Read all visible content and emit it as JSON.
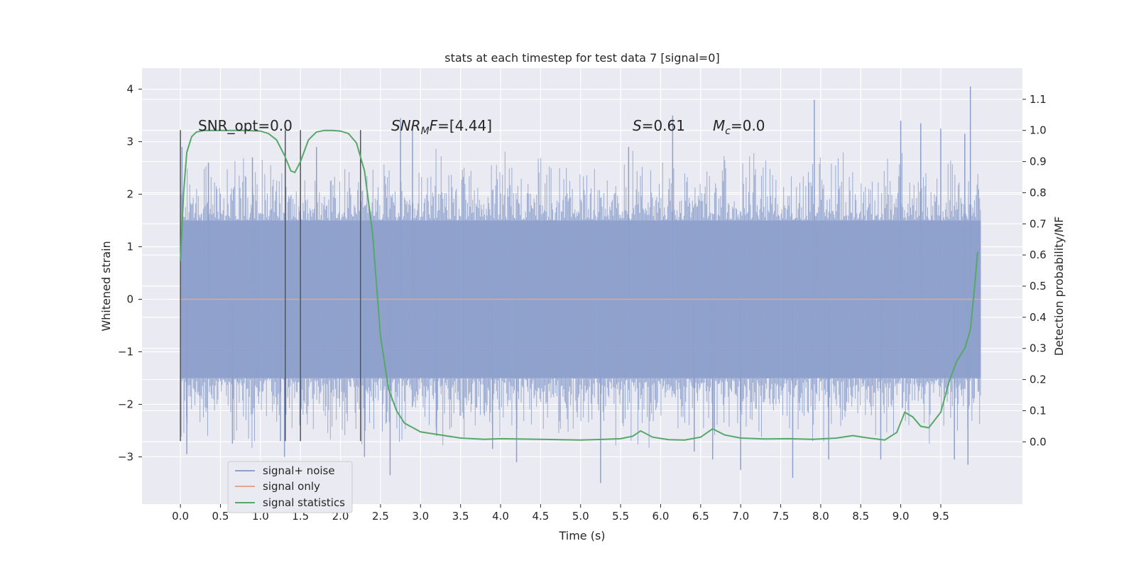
{
  "chart_data": {
    "type": "line",
    "title": "stats at each timestep for test data 7 [signal=0]",
    "xlabel": "Time (s)",
    "ylabel_left": "Whitened strain",
    "ylabel_right": "Detection probability/MF",
    "xlim": [
      -0.48,
      10.52
    ],
    "ylim_left": [
      -3.9,
      4.4
    ],
    "ylim_right": [
      -0.2,
      1.2
    ],
    "x_ticks": [
      "0.0",
      "0.5",
      "1.0",
      "1.5",
      "2.0",
      "2.5",
      "3.0",
      "3.5",
      "4.0",
      "4.5",
      "5.0",
      "5.5",
      "6.0",
      "6.5",
      "7.0",
      "7.5",
      "8.0",
      "8.5",
      "9.0",
      "9.5"
    ],
    "y_left_ticks": [
      "4",
      "3",
      "2",
      "1",
      "0",
      "−1",
      "−2",
      "−3"
    ],
    "y_right_ticks": [
      "1.1",
      "1.0",
      "0.9",
      "0.8",
      "0.7",
      "0.6",
      "0.5",
      "0.4",
      "0.3",
      "0.2",
      "0.1",
      "0.0"
    ],
    "grid": true,
    "legend_position": "lower-left",
    "annotations": {
      "snr_opt": "SNR_opt=0.0",
      "snr_mf": "=[4.44]",
      "s": "=0.61",
      "mc": "=0.0"
    },
    "vertical_markers_x": [
      0.0,
      1.31,
      1.5,
      2.25
    ],
    "series": [
      {
        "name": "signal+ noise",
        "color": "#8da0cb",
        "noise_band": [
          -1.5,
          1.5
        ],
        "peaks": [
          [
            0.02,
            2.9
          ],
          [
            0.08,
            -2.95
          ],
          [
            0.35,
            2.6
          ],
          [
            0.65,
            -2.75
          ],
          [
            0.9,
            2.7
          ],
          [
            1.25,
            -2.7
          ],
          [
            1.3,
            -3.0
          ],
          [
            1.7,
            2.9
          ],
          [
            2.3,
            -3.0
          ],
          [
            2.62,
            -3.35
          ],
          [
            2.75,
            3.45
          ],
          [
            2.9,
            3.3
          ],
          [
            3.2,
            -2.6
          ],
          [
            3.9,
            -2.85
          ],
          [
            4.2,
            -3.1
          ],
          [
            5.25,
            -3.5
          ],
          [
            5.6,
            2.9
          ],
          [
            6.15,
            3.5
          ],
          [
            6.42,
            -2.9
          ],
          [
            6.65,
            -3.05
          ],
          [
            7.0,
            -3.25
          ],
          [
            7.65,
            -3.4
          ],
          [
            7.92,
            3.8
          ],
          [
            8.1,
            -3.05
          ],
          [
            8.75,
            -3.05
          ],
          [
            9.0,
            3.4
          ],
          [
            9.25,
            3.35
          ],
          [
            9.5,
            3.25
          ],
          [
            9.67,
            -3.05
          ],
          [
            9.8,
            3.15
          ],
          [
            9.84,
            -3.15
          ],
          [
            9.87,
            4.05
          ]
        ],
        "x_range": [
          0.0,
          10.0
        ]
      },
      {
        "name": "signal only",
        "color": "#e5a58a",
        "x": [
          0.0,
          10.0
        ],
        "values": [
          0.0,
          0.0
        ]
      },
      {
        "name": "signal statistics",
        "color": "#55a868",
        "axis": "right",
        "x": [
          0.0,
          0.04,
          0.08,
          0.14,
          0.2,
          0.3,
          0.5,
          0.8,
          1.0,
          1.1,
          1.2,
          1.3,
          1.38,
          1.43,
          1.5,
          1.6,
          1.7,
          1.8,
          1.9,
          2.0,
          2.1,
          2.2,
          2.3,
          2.4,
          2.5,
          2.6,
          2.7,
          2.8,
          3.0,
          3.2,
          3.5,
          3.8,
          4.0,
          4.5,
          5.0,
          5.3,
          5.5,
          5.65,
          5.75,
          5.9,
          6.1,
          6.3,
          6.5,
          6.65,
          6.8,
          7.0,
          7.3,
          7.6,
          7.9,
          8.2,
          8.4,
          8.6,
          8.8,
          8.95,
          9.05,
          9.15,
          9.25,
          9.35,
          9.5,
          9.6,
          9.7,
          9.8,
          9.87,
          9.92,
          9.96
        ],
        "values": [
          0.58,
          0.8,
          0.93,
          0.98,
          0.995,
          1.0,
          1.0,
          1.0,
          0.998,
          0.99,
          0.97,
          0.92,
          0.87,
          0.865,
          0.9,
          0.97,
          0.995,
          1.0,
          1.0,
          0.998,
          0.99,
          0.96,
          0.87,
          0.67,
          0.34,
          0.17,
          0.1,
          0.06,
          0.032,
          0.024,
          0.012,
          0.008,
          0.01,
          0.008,
          0.006,
          0.008,
          0.01,
          0.018,
          0.035,
          0.015,
          0.007,
          0.006,
          0.015,
          0.042,
          0.022,
          0.012,
          0.009,
          0.01,
          0.008,
          0.012,
          0.02,
          0.012,
          0.006,
          0.03,
          0.095,
          0.08,
          0.05,
          0.045,
          0.095,
          0.19,
          0.26,
          0.3,
          0.36,
          0.49,
          0.61
        ]
      }
    ]
  }
}
